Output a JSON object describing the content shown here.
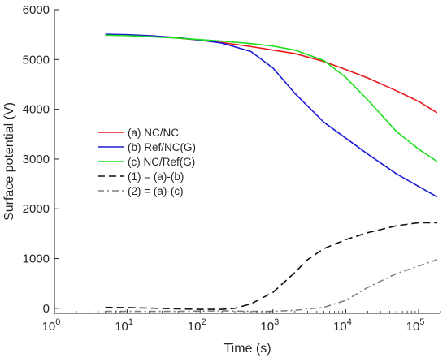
{
  "chart_data": {
    "type": "line",
    "xlabel": "Time (s)",
    "ylabel": "Surface potential (V)",
    "x_scale": "log",
    "xlim": [
      1,
      200000
    ],
    "ylim": [
      -100,
      6000
    ],
    "x_ticks": [
      {
        "value": 1,
        "base": "10",
        "exp": "0"
      },
      {
        "value": 10,
        "base": "10",
        "exp": "1"
      },
      {
        "value": 100,
        "base": "10",
        "exp": "2"
      },
      {
        "value": 1000,
        "base": "10",
        "exp": "3"
      },
      {
        "value": 10000,
        "base": "10",
        "exp": "4"
      },
      {
        "value": 100000,
        "base": "10",
        "exp": "5"
      }
    ],
    "y_ticks": [
      0,
      1000,
      2000,
      3000,
      4000,
      5000,
      6000
    ],
    "grid": false,
    "legend_position": "middle-left",
    "series": [
      {
        "name": "(a) NC/NC",
        "color": "#e8171b",
        "dash": "solid",
        "x": [
          5,
          10,
          20,
          50,
          100,
          200,
          500,
          1000,
          2000,
          5000,
          10000,
          20000,
          50000,
          100000,
          180000
        ],
        "y": [
          5500,
          5490,
          5470,
          5430,
          5390,
          5340,
          5260,
          5190,
          5120,
          4960,
          4800,
          4630,
          4370,
          4160,
          3930
        ]
      },
      {
        "name": "(b) Ref/NC(G)",
        "color": "#1b1bd6",
        "dash": "solid",
        "x": [
          5,
          10,
          20,
          50,
          100,
          200,
          500,
          1000,
          2000,
          5000,
          10000,
          20000,
          50000,
          100000,
          180000
        ],
        "y": [
          5510,
          5500,
          5480,
          5440,
          5390,
          5330,
          5160,
          4830,
          4320,
          3740,
          3420,
          3100,
          2700,
          2450,
          2240
        ]
      },
      {
        "name": "(c) NC/Ref(G)",
        "color": "#1ddf1d",
        "dash": "solid",
        "x": [
          5,
          10,
          20,
          50,
          100,
          200,
          500,
          1000,
          2000,
          5000,
          10000,
          20000,
          50000,
          100000,
          180000
        ],
        "y": [
          5490,
          5480,
          5460,
          5430,
          5400,
          5370,
          5320,
          5270,
          5190,
          4980,
          4640,
          4190,
          3550,
          3200,
          2950
        ]
      },
      {
        "name": "(1) = (a)-(b)",
        "color": "#111111",
        "dash": "dashed",
        "x": [
          5,
          10,
          20,
          50,
          100,
          200,
          300,
          500,
          1000,
          2000,
          3000,
          5000,
          10000,
          20000,
          50000,
          100000,
          180000
        ],
        "y": [
          20,
          15,
          5,
          -10,
          -20,
          -20,
          0,
          90,
          320,
          720,
          980,
          1200,
          1380,
          1520,
          1660,
          1720,
          1720
        ]
      },
      {
        "name": "(2) = (a)-(c)",
        "color": "#7f7f7f",
        "dash": "dashdot",
        "x": [
          5,
          10,
          20,
          50,
          100,
          200,
          500,
          1000,
          2000,
          5000,
          10000,
          20000,
          50000,
          100000,
          180000
        ],
        "y": [
          -60,
          -60,
          -60,
          -60,
          -55,
          -50,
          -60,
          -60,
          -40,
          20,
          160,
          420,
          700,
          850,
          980
        ]
      }
    ]
  }
}
